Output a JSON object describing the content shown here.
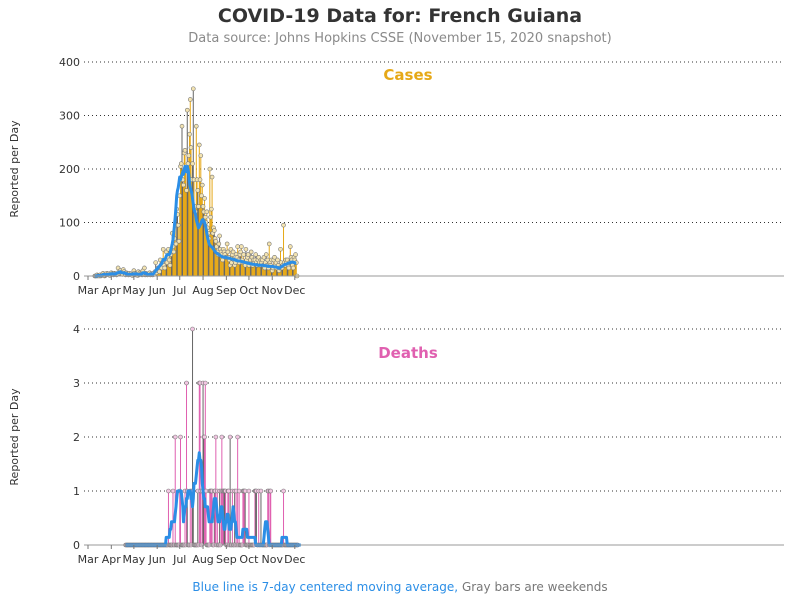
{
  "title": "COVID-19 Data for: French Guiana",
  "subtitle": "Data source: Johns Hopkins CSSE (November 15, 2020 snapshot)",
  "footer": {
    "blue_note": "Blue line is 7-day centered moving average,",
    "gray_note": "Gray bars are weekends"
  },
  "colors": {
    "cases": "#e6a817",
    "deaths": "#e060b0",
    "moving_average": "#2b8ee6",
    "weekend": "#666666",
    "grid": "#333333",
    "text": "#333333"
  },
  "chart_data": [
    {
      "type": "bar",
      "title": "Cases",
      "ylabel": "Reported per Day",
      "ylim": [
        0,
        400
      ],
      "yticks": [
        0,
        100,
        200,
        300,
        400
      ],
      "xticks": [
        "Mar",
        "Apr",
        "May",
        "Jun",
        "Jul",
        "Aug",
        "Sep",
        "Oct",
        "Nov",
        "Dec"
      ],
      "start_date": "2020-03-10",
      "grid": "horizontal dotted",
      "values": [
        0,
        0,
        0,
        2,
        0,
        1,
        0,
        2,
        0,
        1,
        3,
        5,
        2,
        0,
        1,
        2,
        5,
        3,
        4,
        2,
        1,
        3,
        6,
        4,
        3,
        2,
        5,
        4,
        3,
        2,
        4,
        15,
        8,
        5,
        10,
        6,
        4,
        3,
        12,
        8,
        5,
        2,
        6,
        4,
        3,
        2,
        5,
        3,
        4,
        2,
        1,
        3,
        10,
        5,
        2,
        4,
        3,
        1,
        8,
        2,
        6,
        4,
        3,
        2,
        10,
        3,
        15,
        2,
        5,
        3,
        2,
        4,
        3,
        6,
        2,
        4,
        3,
        2,
        5,
        3,
        8,
        25,
        6,
        10,
        15,
        12,
        8,
        30,
        20,
        15,
        25,
        50,
        20,
        15,
        30,
        45,
        25,
        35,
        50,
        30,
        20,
        40,
        45,
        80,
        55,
        45,
        70,
        95,
        60,
        125,
        115,
        95,
        65,
        150,
        205,
        210,
        280,
        180,
        170,
        230,
        235,
        200,
        160,
        310,
        210,
        225,
        265,
        330,
        240,
        180,
        210,
        350,
        180,
        130,
        120,
        280,
        180,
        160,
        130,
        245,
        180,
        225,
        150,
        170,
        130,
        120,
        145,
        110,
        100,
        120,
        90,
        80,
        70,
        200,
        110,
        125,
        185,
        80,
        90,
        85,
        70,
        65,
        55,
        45,
        40,
        60,
        75,
        50,
        45,
        40,
        30,
        50,
        45,
        40,
        35,
        35,
        60,
        45,
        35,
        30,
        20,
        50,
        25,
        40,
        45,
        30,
        20,
        25,
        40,
        35,
        55,
        30,
        25,
        40,
        45,
        55,
        30,
        25,
        40,
        25,
        20,
        50,
        30,
        35,
        40,
        20,
        25,
        30,
        45,
        35,
        20,
        30,
        25,
        30,
        40,
        25,
        20,
        30,
        35,
        25,
        20,
        30,
        25,
        30,
        20,
        35,
        15,
        25,
        40,
        20,
        30,
        15,
        60,
        25,
        20,
        30,
        10,
        15,
        30,
        35,
        20,
        25,
        15,
        30,
        20,
        10,
        15,
        50,
        25,
        15,
        20,
        95,
        25,
        20,
        30,
        25,
        30,
        20,
        15,
        25,
        55,
        35,
        30,
        20,
        15,
        35,
        30,
        40,
        25,
        0
      ],
      "moving_average": [
        0,
        0,
        0,
        0,
        1,
        1,
        1,
        1,
        1,
        1,
        2,
        2,
        3,
        3,
        2,
        2,
        3,
        3,
        3,
        3,
        3,
        4,
        4,
        4,
        4,
        4,
        4,
        4,
        4,
        5,
        6,
        6,
        7,
        7,
        8,
        7,
        6,
        6,
        6,
        6,
        5,
        5,
        4,
        4,
        3,
        3,
        3,
        3,
        3,
        3,
        3,
        4,
        4,
        4,
        4,
        4,
        4,
        3,
        3,
        3,
        3,
        3,
        4,
        4,
        6,
        6,
        6,
        5,
        5,
        4,
        3,
        3,
        3,
        3,
        3,
        4,
        3,
        3,
        4,
        6,
        8,
        10,
        12,
        13,
        15,
        17,
        18,
        20,
        22,
        23,
        27,
        31,
        30,
        30,
        33,
        37,
        40,
        40,
        40,
        40,
        42,
        48,
        54,
        60,
        68,
        80,
        95,
        110,
        130,
        150,
        160,
        165,
        175,
        185,
        180,
        185,
        190,
        195,
        190,
        200,
        205,
        200,
        195,
        205,
        200,
        190,
        175,
        165,
        160,
        155,
        145,
        135,
        125,
        120,
        115,
        105,
        100,
        95,
        90,
        92,
        95,
        98,
        102,
        105,
        105,
        103,
        100,
        95,
        88,
        80,
        72,
        66,
        60,
        58,
        56,
        55,
        54,
        52,
        50,
        48,
        46,
        44,
        43,
        42,
        41,
        40,
        39,
        38,
        37,
        36,
        36,
        35,
        35,
        35,
        35,
        34,
        34,
        34,
        33,
        33,
        33,
        32,
        32,
        32,
        31,
        31,
        30,
        30,
        29,
        29,
        28,
        28,
        28,
        28,
        28,
        27,
        27,
        27,
        26,
        26,
        25,
        25,
        25,
        24,
        24,
        24,
        23,
        23,
        23,
        22,
        22,
        22,
        22,
        21,
        21,
        21,
        21,
        20,
        20,
        20,
        20,
        20,
        20,
        20,
        20,
        19,
        19,
        19,
        19,
        19,
        18,
        18,
        18,
        18,
        18,
        18,
        18,
        18,
        17,
        17,
        17,
        17,
        16,
        16,
        15,
        15,
        15,
        16,
        17,
        18,
        19,
        20,
        21,
        22,
        22,
        22,
        23,
        24,
        24,
        25,
        25,
        26,
        26,
        26,
        26,
        25,
        25,
        24,
        24
      ]
    },
    {
      "type": "bar",
      "title": "Deaths",
      "ylabel": "Reported per Day",
      "ylim": [
        0,
        4
      ],
      "yticks": [
        0,
        1,
        2,
        3,
        4
      ],
      "xticks": [
        "Mar",
        "Apr",
        "May",
        "Jun",
        "Jul",
        "Aug",
        "Sep",
        "Oct",
        "Nov",
        "Dec"
      ],
      "start_date": "2020-04-20",
      "grid": "horizontal dotted",
      "values": [
        0,
        0,
        0,
        0,
        0,
        0,
        0,
        0,
        0,
        0,
        0,
        0,
        0,
        0,
        0,
        0,
        0,
        0,
        0,
        0,
        0,
        0,
        0,
        0,
        0,
        0,
        0,
        0,
        0,
        0,
        0,
        0,
        0,
        0,
        0,
        0,
        0,
        0,
        0,
        0,
        0,
        0,
        0,
        0,
        0,
        0,
        0,
        0,
        0,
        0,
        0,
        0,
        0,
        0,
        0,
        0,
        0,
        1,
        0,
        0,
        0,
        0,
        0,
        1,
        0,
        0,
        2,
        0,
        0,
        0,
        0,
        0,
        1,
        2,
        0,
        0,
        0,
        0,
        0,
        1,
        0,
        3,
        1,
        0,
        0,
        0,
        1,
        0,
        1,
        4,
        1,
        0,
        0,
        0,
        0,
        0,
        1,
        0,
        3,
        3,
        1,
        0,
        1,
        3,
        2,
        2,
        3,
        1,
        0,
        0,
        0,
        0,
        1,
        1,
        1,
        1,
        0,
        0,
        1,
        1,
        2,
        0,
        1,
        0,
        0,
        1,
        0,
        1,
        2,
        1,
        1,
        1,
        1,
        1,
        0,
        0,
        1,
        1,
        0,
        2,
        0,
        0,
        1,
        0,
        0,
        1,
        0,
        1,
        0,
        2,
        0,
        1,
        0,
        0,
        0,
        0,
        1,
        1,
        1,
        1,
        0,
        0,
        0,
        0,
        1,
        0,
        0,
        0,
        0,
        0,
        0,
        0,
        1,
        1,
        1,
        0,
        0,
        1,
        0,
        0,
        1,
        0,
        0,
        0,
        0,
        0,
        0,
        0,
        0,
        1,
        1,
        0,
        1,
        1,
        0,
        0,
        0,
        0,
        0,
        0,
        0,
        0,
        0,
        0,
        0,
        0,
        0,
        0,
        0,
        0,
        1,
        0,
        0,
        0,
        0,
        0,
        0,
        0,
        0,
        0,
        0,
        0,
        0,
        0,
        0,
        0,
        0,
        0,
        0,
        0
      ],
      "moving_average": [
        0,
        0,
        0,
        0,
        0,
        0,
        0,
        0,
        0,
        0,
        0,
        0,
        0,
        0,
        0,
        0,
        0,
        0,
        0,
        0,
        0,
        0,
        0,
        0,
        0,
        0,
        0,
        0,
        0,
        0,
        0,
        0,
        0,
        0,
        0,
        0,
        0,
        0,
        0,
        0,
        0,
        0,
        0,
        0,
        0,
        0,
        0,
        0,
        0,
        0,
        0,
        0,
        0,
        0,
        0.14,
        0.14,
        0.14,
        0.14,
        0.14,
        0.29,
        0.29,
        0.43,
        0.43,
        0.43,
        0.43,
        0.43,
        0.57,
        0.71,
        0.86,
        1,
        1,
        1,
        1,
        1,
        1,
        0.86,
        0.71,
        0.43,
        0.57,
        0.71,
        0.71,
        0.86,
        0.86,
        1,
        1,
        1,
        1,
        0.86,
        0.86,
        0.71,
        0.86,
        1.14,
        1.14,
        1.14,
        1.29,
        1.43,
        1.57,
        1.57,
        1.71,
        1.57,
        1.57,
        1.43,
        1.14,
        1,
        0.86,
        0.86,
        0.71,
        0.71,
        0.71,
        0.71,
        0.57,
        0.43,
        0.43,
        0.43,
        0.43,
        0.43,
        0.57,
        0.71,
        0.86,
        0.86,
        0.86,
        0.71,
        0.57,
        0.43,
        0.43,
        0.43,
        0.57,
        0.71,
        0.71,
        0.57,
        0.43,
        0.29,
        0.29,
        0.43,
        0.43,
        0.57,
        0.57,
        0.43,
        0.29,
        0.29,
        0.29,
        0.43,
        0.57,
        0.71,
        0.57,
        0.43,
        0.43,
        0.29,
        0.14,
        0.14,
        0.14,
        0.14,
        0.14,
        0.14,
        0.14,
        0.14,
        0.29,
        0.29,
        0.29,
        0.29,
        0.29,
        0.29,
        0.14,
        0.14,
        0.14,
        0.14,
        0.14,
        0.14,
        0.14,
        0.14,
        0.14,
        0.14,
        0.14,
        0,
        0,
        0,
        0,
        0,
        0,
        0,
        0,
        0,
        0,
        0,
        0.14,
        0.29,
        0.43,
        0.43,
        0.43,
        0.29,
        0.14,
        0,
        0,
        0,
        0,
        0,
        0,
        0,
        0,
        0,
        0,
        0,
        0,
        0,
        0,
        0,
        0,
        0,
        0.14,
        0.14,
        0.14,
        0.14,
        0.14,
        0.14,
        0.14,
        0,
        0,
        0,
        0,
        0,
        0,
        0,
        0,
        0,
        0,
        0,
        0,
        0,
        0,
        0,
        0,
        0,
        0,
        0
      ]
    }
  ]
}
